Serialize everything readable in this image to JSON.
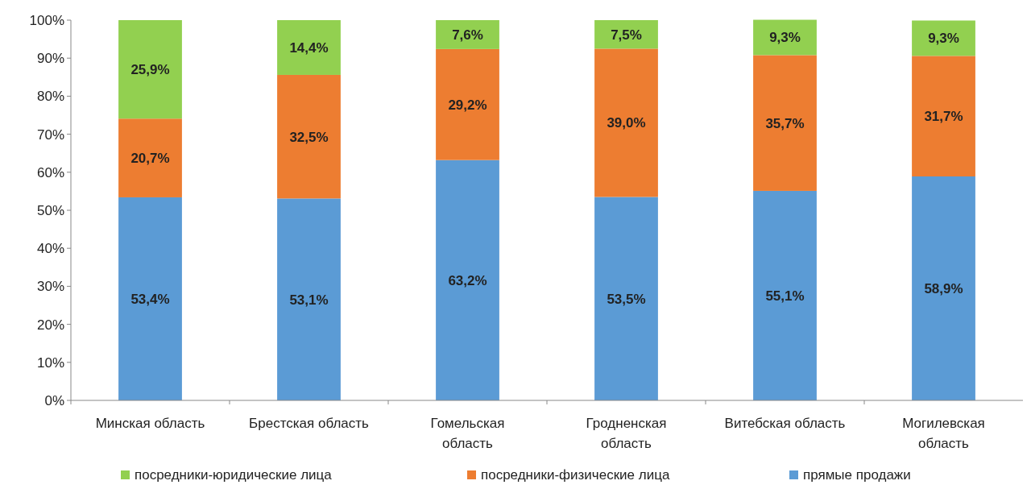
{
  "chart_data": {
    "type": "bar",
    "stacked": true,
    "categories": [
      "Минская область",
      "Брестская область",
      "Гомельская область",
      "Гродненская область",
      "Витебская область",
      "Могилевская область"
    ],
    "series": [
      {
        "name": "прямые продажи",
        "color": "#5b9bd5",
        "values": [
          53.4,
          53.1,
          63.2,
          53.5,
          55.1,
          58.9
        ],
        "value_labels": [
          "53,4%",
          "53,1%",
          "63,2%",
          "53,5%",
          "55,1%",
          "58,9%"
        ]
      },
      {
        "name": "посредники-физические лица",
        "color": "#ed7d31",
        "values": [
          20.7,
          32.5,
          29.2,
          39.0,
          35.7,
          31.7
        ],
        "value_labels": [
          "20,7%",
          "32,5%",
          "29,2%",
          "39,0%",
          "35,7%",
          "31,7%"
        ]
      },
      {
        "name": "посредники-юридические лица",
        "color": "#92d050",
        "values": [
          25.9,
          14.4,
          7.6,
          7.5,
          9.3,
          9.3
        ],
        "value_labels": [
          "25,9%",
          "14,4%",
          "7,6%",
          "7,5%",
          "9,3%",
          "9,3%"
        ]
      }
    ],
    "ylim": [
      0,
      100
    ],
    "yticks": [
      {
        "value": 0,
        "label": "0%"
      },
      {
        "value": 10,
        "label": "10%"
      },
      {
        "value": 20,
        "label": "20%"
      },
      {
        "value": 30,
        "label": "30%"
      },
      {
        "value": 40,
        "label": "40%"
      },
      {
        "value": 50,
        "label": "50%"
      },
      {
        "value": 60,
        "label": "60%"
      },
      {
        "value": 70,
        "label": "70%"
      },
      {
        "value": 80,
        "label": "80%"
      },
      {
        "value": 90,
        "label": "90%"
      },
      {
        "value": 100,
        "label": "100%"
      }
    ],
    "legend": "bottom"
  }
}
